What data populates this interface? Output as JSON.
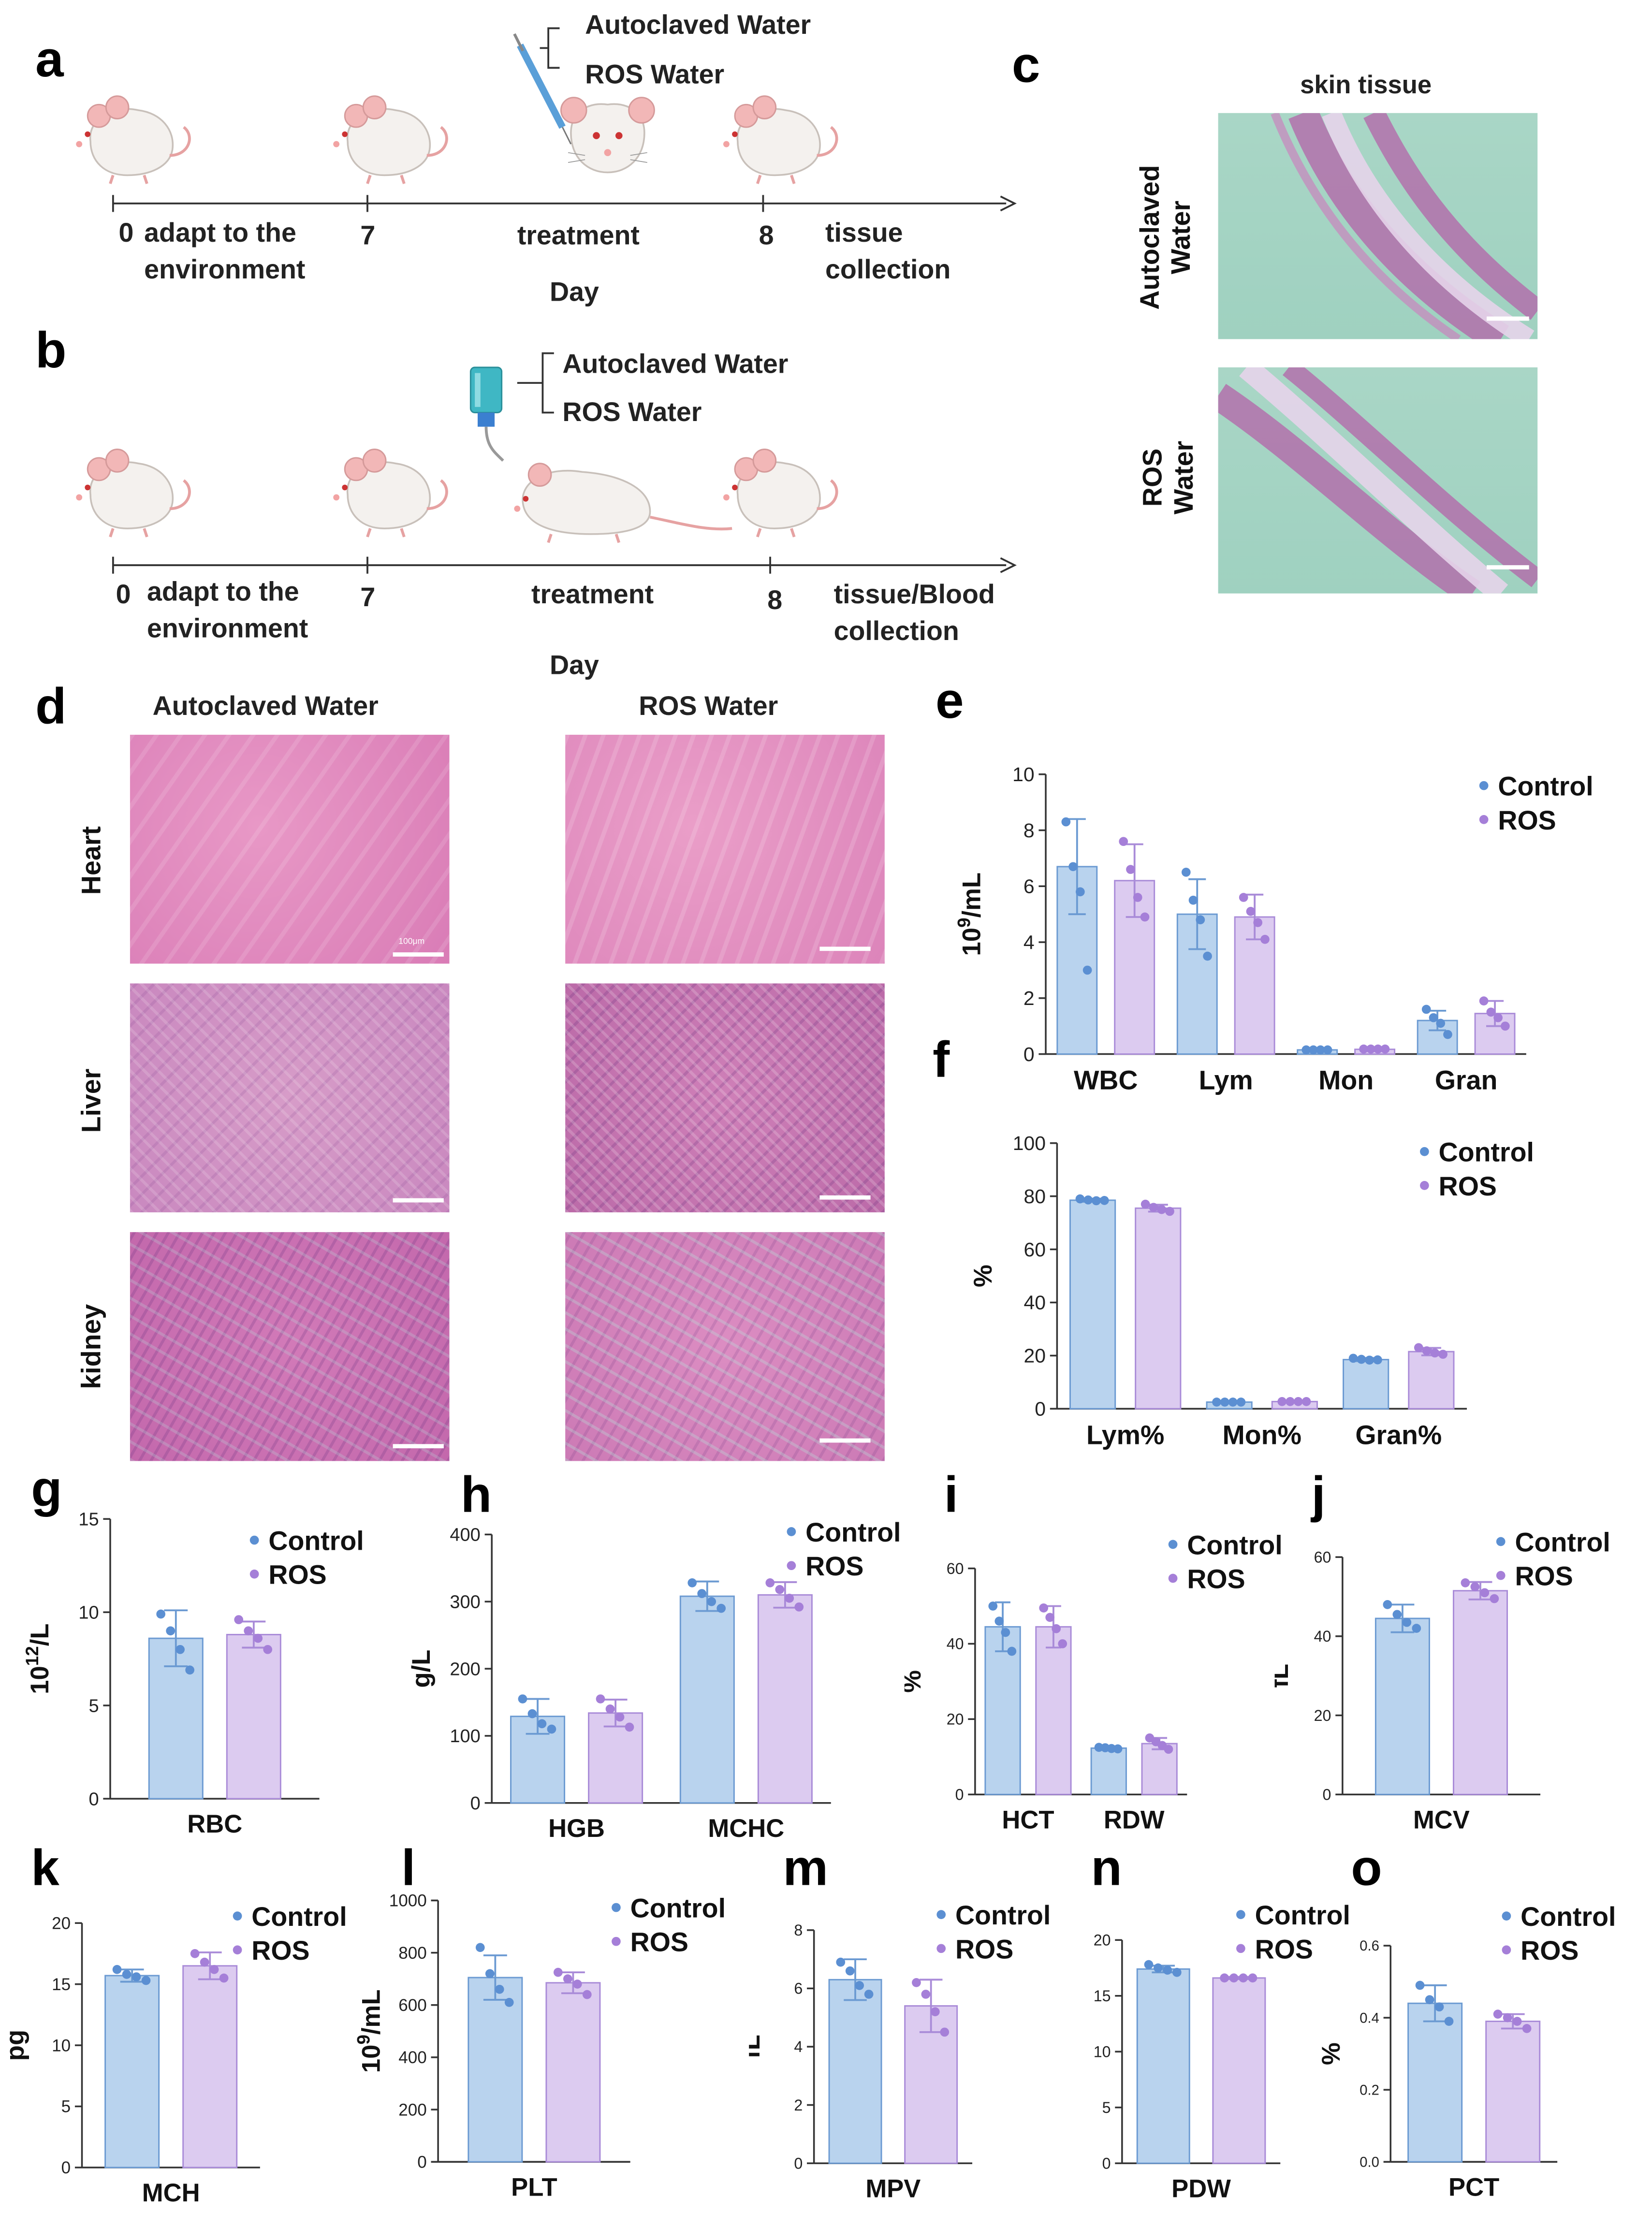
{
  "panels": {
    "a": {
      "label": "a",
      "injection": {
        "option1": "Autoclaved Water",
        "option2": "ROS Water"
      },
      "ticks": [
        {
          "num": "0",
          "text": "adapt to the",
          "text2": "environment"
        },
        {
          "num": "7"
        },
        {
          "text": "treatment"
        },
        {
          "num": "8",
          "text": "tissue",
          "text2": "collection"
        }
      ],
      "axis_label": "Day"
    },
    "b": {
      "label": "b",
      "drinking": {
        "option1": "Autoclaved Water",
        "option2": "ROS Water"
      },
      "ticks": [
        {
          "num": "0",
          "text": "adapt to the",
          "text2": "environment"
        },
        {
          "num": "7"
        },
        {
          "text": "treatment"
        },
        {
          "num": "8",
          "text": "tissue/Blood",
          "text2": "collection"
        }
      ],
      "axis_label": "Day"
    },
    "c": {
      "label": "c",
      "title": "skin tissue",
      "rows": [
        {
          "line1": "Autoclaved",
          "line2": "Water"
        },
        {
          "line1": "ROS",
          "line2": "Water"
        }
      ]
    },
    "d": {
      "label": "d",
      "col_titles": [
        "Autoclaved Water",
        "ROS Water"
      ],
      "rows": [
        "Heart",
        "Liver",
        "kidney"
      ],
      "scale_text": "100μm"
    }
  },
  "colors": {
    "control_fill": "#b9d3ee",
    "control_stroke": "#6b9ad2",
    "control_dot": "#5b8fd2",
    "ros_fill": "#dccbf0",
    "ros_stroke": "#a98bd8",
    "ros_dot": "#a57fd8",
    "axis": "#333333"
  },
  "chart_data": [
    {
      "id": "e",
      "label": "e",
      "type": "bar",
      "ylabel": "10^9/mL",
      "ylim": [
        0,
        10
      ],
      "yticks": [
        0,
        2,
        4,
        6,
        8,
        10
      ],
      "categories": [
        "WBC",
        "Lym",
        "Mon",
        "Gran"
      ],
      "legend": [
        "Control",
        "ROS"
      ],
      "series": [
        {
          "name": "Control",
          "values": [
            6.7,
            5.0,
            0.15,
            1.2
          ],
          "errors": [
            1.7,
            1.25,
            0.03,
            0.35
          ],
          "points": [
            [
              8.3,
              6.7,
              5.8,
              3.0
            ],
            [
              6.5,
              5.5,
              4.8,
              3.5
            ],
            [
              0.15,
              0.15,
              0.15,
              0.15
            ],
            [
              1.6,
              1.3,
              1.1,
              0.7
            ]
          ]
        },
        {
          "name": "ROS",
          "values": [
            6.2,
            4.9,
            0.17,
            1.45
          ],
          "errors": [
            1.3,
            0.8,
            0.04,
            0.45
          ],
          "points": [
            [
              7.6,
              6.6,
              5.6,
              4.9
            ],
            [
              5.6,
              5.1,
              4.7,
              4.1
            ],
            [
              0.18,
              0.18,
              0.18,
              0.18
            ],
            [
              1.9,
              1.5,
              1.3,
              1.0
            ]
          ]
        }
      ]
    },
    {
      "id": "f",
      "label": "f",
      "type": "bar",
      "ylabel": "%",
      "ylim": [
        0,
        100
      ],
      "yticks": [
        0,
        20,
        40,
        60,
        80,
        100
      ],
      "categories": [
        "Lym%",
        "Mon%",
        "Gran%"
      ],
      "legend": [
        "Control",
        "ROS"
      ],
      "series": [
        {
          "name": "Control",
          "values": [
            78.5,
            2.5,
            18.5
          ],
          "errors": [
            0.6,
            0.2,
            0.6
          ],
          "points": [
            [
              79,
              78.6,
              78.3,
              78.4
            ],
            [
              2.5,
              2.5,
              2.5,
              2.5
            ],
            [
              19,
              18.6,
              18.3,
              18.4
            ]
          ]
        },
        {
          "name": "ROS",
          "values": [
            75.5,
            2.7,
            21.5
          ],
          "errors": [
            1.3,
            0.2,
            1.4
          ],
          "points": [
            [
              77,
              75.8,
              75,
              74.3
            ],
            [
              2.7,
              2.7,
              2.7,
              2.7
            ],
            [
              23,
              21.8,
              21,
              20.5
            ]
          ]
        }
      ]
    },
    {
      "id": "g",
      "label": "g",
      "type": "bar",
      "ylabel": "10^12/L",
      "ylim": [
        0,
        15
      ],
      "yticks": [
        0,
        5,
        10,
        15
      ],
      "categories": [
        "RBC"
      ],
      "legend": [
        "Control",
        "ROS"
      ],
      "series": [
        {
          "name": "Control",
          "values": [
            8.6
          ],
          "errors": [
            1.5
          ],
          "points": [
            [
              9.9,
              9.0,
              8.0,
              6.9
            ]
          ]
        },
        {
          "name": "ROS",
          "values": [
            8.8
          ],
          "errors": [
            0.7
          ],
          "points": [
            [
              9.6,
              9.0,
              8.6,
              8.0
            ]
          ]
        }
      ]
    },
    {
      "id": "h",
      "label": "h",
      "type": "bar",
      "ylabel": "g/L",
      "ylim": [
        0,
        400
      ],
      "yticks": [
        0,
        100,
        200,
        300,
        400
      ],
      "categories": [
        "HGB",
        "MCHC"
      ],
      "legend": [
        "Control",
        "ROS"
      ],
      "series": [
        {
          "name": "Control",
          "values": [
            129,
            308
          ],
          "errors": [
            26,
            22
          ],
          "points": [
            [
              155,
              133,
              118,
              110
            ],
            [
              328,
              312,
              300,
              290
            ]
          ]
        },
        {
          "name": "ROS",
          "values": [
            134,
            310
          ],
          "errors": [
            20,
            19
          ],
          "points": [
            [
              155,
              140,
              128,
              113
            ],
            [
              328,
              318,
              305,
              292
            ]
          ]
        }
      ]
    },
    {
      "id": "i",
      "label": "i",
      "type": "bar",
      "ylabel": "%",
      "ylim": [
        0,
        60
      ],
      "yticks": [
        0,
        20,
        40,
        60
      ],
      "categories": [
        "HCT",
        "RDW"
      ],
      "legend": [
        "Control",
        "ROS"
      ],
      "series": [
        {
          "name": "Control",
          "values": [
            44.5,
            12.3
          ],
          "errors": [
            6.5,
            0.3
          ],
          "points": [
            [
              50,
              46,
              43,
              38
            ],
            [
              12.5,
              12.4,
              12.2,
              12.1
            ]
          ]
        },
        {
          "name": "ROS",
          "values": [
            44.5,
            13.5
          ],
          "errors": [
            5.5,
            1.5
          ],
          "points": [
            [
              49.5,
              47,
              44,
              40
            ],
            [
              15,
              14,
              13,
              12
            ]
          ]
        }
      ]
    },
    {
      "id": "j",
      "label": "j",
      "type": "bar",
      "ylabel": "fL",
      "ylim": [
        0,
        60
      ],
      "yticks": [
        0,
        20,
        40,
        60
      ],
      "categories": [
        "MCV"
      ],
      "legend": [
        "Control",
        "ROS"
      ],
      "series": [
        {
          "name": "Control",
          "values": [
            44.5
          ],
          "errors": [
            3.5
          ],
          "points": [
            [
              48,
              45.5,
              43.5,
              42
            ]
          ]
        },
        {
          "name": "ROS",
          "values": [
            51.5
          ],
          "errors": [
            2.2
          ],
          "points": [
            [
              53.5,
              52.5,
              51,
              49.5
            ]
          ]
        }
      ]
    },
    {
      "id": "k",
      "label": "k",
      "type": "bar",
      "ylabel": "pg",
      "ylim": [
        0,
        20
      ],
      "yticks": [
        0,
        5,
        10,
        15,
        20
      ],
      "categories": [
        "MCH"
      ],
      "legend": [
        "Control",
        "ROS"
      ],
      "series": [
        {
          "name": "Control",
          "values": [
            15.7
          ],
          "errors": [
            0.5
          ],
          "points": [
            [
              16.2,
              15.8,
              15.6,
              15.3
            ]
          ]
        },
        {
          "name": "ROS",
          "values": [
            16.5
          ],
          "errors": [
            1.1
          ],
          "points": [
            [
              17.5,
              16.8,
              16.2,
              15.5
            ]
          ]
        }
      ]
    },
    {
      "id": "l",
      "label": "l",
      "type": "bar",
      "ylabel": "10^9/mL",
      "ylim": [
        0,
        1000
      ],
      "yticks": [
        0,
        200,
        400,
        600,
        800,
        1000
      ],
      "categories": [
        "PLT"
      ],
      "legend": [
        "Control",
        "ROS"
      ],
      "series": [
        {
          "name": "Control",
          "values": [
            705
          ],
          "errors": [
            85
          ],
          "points": [
            [
              820,
              720,
              660,
              610
            ]
          ]
        },
        {
          "name": "ROS",
          "values": [
            685
          ],
          "errors": [
            40
          ],
          "points": [
            [
              725,
              700,
              680,
              640
            ]
          ]
        }
      ]
    },
    {
      "id": "m",
      "label": "m",
      "type": "bar",
      "ylabel": "fL",
      "ylim": [
        0,
        8
      ],
      "yticks": [
        0,
        2,
        4,
        6,
        8
      ],
      "categories": [
        "MPV"
      ],
      "legend": [
        "Control",
        "ROS"
      ],
      "series": [
        {
          "name": "Control",
          "values": [
            6.3
          ],
          "errors": [
            0.7
          ],
          "points": [
            [
              6.9,
              6.6,
              6.1,
              5.8
            ]
          ]
        },
        {
          "name": "ROS",
          "values": [
            5.4
          ],
          "errors": [
            0.9
          ],
          "points": [
            [
              6.2,
              5.8,
              5.2,
              4.5
            ]
          ]
        }
      ]
    },
    {
      "id": "n",
      "label": "n",
      "type": "bar",
      "ylabel": "",
      "ylim": [
        0,
        20
      ],
      "yticks": [
        0,
        5,
        10,
        15,
        20
      ],
      "categories": [
        "PDW"
      ],
      "legend": [
        "Control",
        "ROS"
      ],
      "series": [
        {
          "name": "Control",
          "values": [
            17.4
          ],
          "errors": [
            0.3
          ],
          "points": [
            [
              17.8,
              17.5,
              17.3,
              17.1
            ]
          ]
        },
        {
          "name": "ROS",
          "values": [
            16.6
          ],
          "errors": [
            0.1
          ],
          "points": [
            [
              16.6,
              16.6,
              16.6,
              16.6
            ]
          ]
        }
      ]
    },
    {
      "id": "o",
      "label": "o",
      "type": "bar",
      "ylabel": "%",
      "ylim": [
        0,
        0.6
      ],
      "yticks": [
        0.0,
        0.2,
        0.4,
        0.6
      ],
      "tickdecimals": 1,
      "categories": [
        "PCT"
      ],
      "legend": [
        "Control",
        "ROS"
      ],
      "series": [
        {
          "name": "Control",
          "values": [
            0.44
          ],
          "errors": [
            0.05
          ],
          "points": [
            [
              0.49,
              0.45,
              0.43,
              0.39
            ]
          ]
        },
        {
          "name": "ROS",
          "values": [
            0.39
          ],
          "errors": [
            0.02
          ],
          "points": [
            [
              0.41,
              0.4,
              0.39,
              0.37
            ]
          ]
        }
      ]
    }
  ]
}
